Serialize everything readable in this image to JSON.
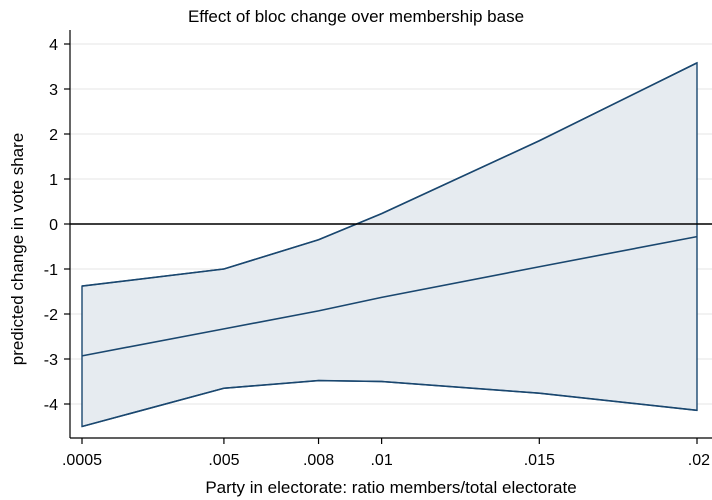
{
  "chart_data": {
    "type": "line",
    "title": "Effect of bloc change over membership base",
    "xlabel": "Party in electorate: ratio members/total electorate",
    "ylabel": "predicted change in vote share",
    "x": [
      0.0005,
      0.005,
      0.008,
      0.01,
      0.015,
      0.02
    ],
    "x_tick_labels": [
      ".0005",
      ".005",
      ".008",
      ".01",
      ".015",
      ".02"
    ],
    "y_ticks": [
      -4,
      -3,
      -2,
      -1,
      0,
      1,
      2,
      3,
      4
    ],
    "y_tick_labels": [
      "-4",
      "-3",
      "-2",
      "-1",
      "0",
      "1",
      "2",
      "3",
      "4"
    ],
    "xlim": [
      0.0005,
      0.02
    ],
    "ylim": [
      -4.5,
      4.2
    ],
    "reference_line_y": 0,
    "grid": true,
    "series": [
      {
        "role": "estimate",
        "values": [
          -2.93,
          -2.33,
          -1.93,
          -1.63,
          -0.95,
          -0.28
        ]
      },
      {
        "role": "upper",
        "values": [
          -1.38,
          -1.0,
          -0.35,
          0.23,
          1.85,
          3.58
        ]
      },
      {
        "role": "lower",
        "values": [
          -4.5,
          -3.65,
          -3.48,
          -3.5,
          -3.76,
          -4.14
        ]
      }
    ],
    "colors": {
      "line": "#1a476f",
      "band": "#e6ebf0",
      "grid": "#eaeaea",
      "axis": "#000000"
    }
  }
}
